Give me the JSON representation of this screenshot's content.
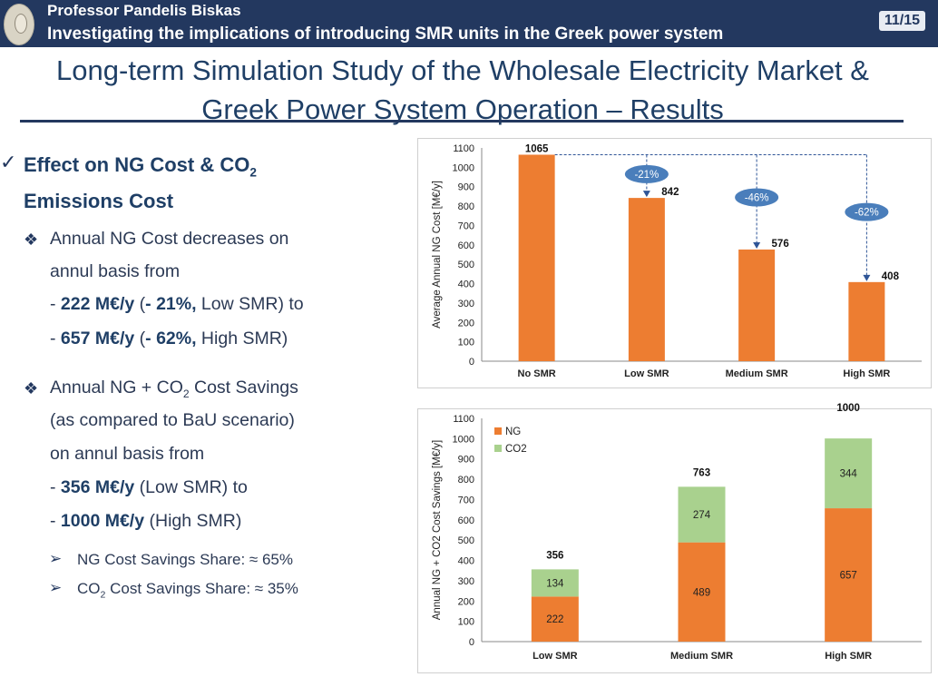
{
  "header": {
    "author": "Professor Pandelis Biskas",
    "subtitle": "Investigating the implications of introducing SMR units in the Greek power system",
    "page": "11/15"
  },
  "title": {
    "line1": "Long-term Simulation Study of the Wholesale Electricity Market &",
    "line2": "Greek Power System Operation – Results"
  },
  "left": {
    "section_heading_part1": "Effect on NG Cost & CO",
    "section_heading_sub": "2",
    "section_heading_line2": "Emissions Cost",
    "bullet1_line1": "Annual NG Cost decreases on",
    "bullet1_line2": "annul basis from",
    "bullet1_l3_pre": "- ",
    "bullet1_l3_bold1": "222 M€/y",
    "bullet1_l3_mid": " (",
    "bullet1_l3_bold2": "- 21%,",
    "bullet1_l3_end": " Low SMR) to",
    "bullet1_l4_pre": "- ",
    "bullet1_l4_bold1": "657 M€/y",
    "bullet1_l4_mid": " (",
    "bullet1_l4_bold2": "- 62%,",
    "bullet1_l4_end": " High SMR)",
    "bullet2_l1_pre": "Annual NG + CO",
    "bullet2_l1_sub": "2",
    "bullet2_l1_end": " Cost Savings",
    "bullet2_line2": "(as compared to BaU scenario)",
    "bullet2_line3": "on annul basis from",
    "bullet2_l4_pre": "- ",
    "bullet2_l4_bold": "356 M€/y",
    "bullet2_l4_end": " (Low SMR) to",
    "bullet2_l5_pre": "- ",
    "bullet2_l5_bold": "1000 M€/y",
    "bullet2_l5_end": " (High SMR)",
    "sub1": "NG Cost Savings Share: ≈ 65%",
    "sub2_pre": "CO",
    "sub2_sub": "2",
    "sub2_end": " Cost Savings Share: ≈ 35%",
    "bullet_icon": "diamond-bullet-icon",
    "sub_bullet_icon": "arrow-bullet-icon",
    "check_icon": "check-icon"
  },
  "colors": {
    "header_bg": "#23385f",
    "ng": "#ed7d31",
    "co2": "#a9d18e",
    "callout": "#4a7ebb"
  },
  "chart_data": [
    {
      "type": "bar",
      "title": "",
      "ylabel": "Average Annual NG Cost [M€/y]",
      "ylim": [
        0,
        1100
      ],
      "yticks": [
        0,
        100,
        200,
        300,
        400,
        500,
        600,
        700,
        800,
        900,
        1000,
        1100
      ],
      "categories": [
        "No SMR",
        "Low SMR",
        "Medium SMR",
        "High SMR"
      ],
      "values": [
        1065,
        842,
        576,
        408
      ],
      "data_labels": [
        "1065",
        "842",
        "576",
        "408"
      ],
      "annotations": [
        "",
        "-21%",
        "-46%",
        "-62%"
      ],
      "grid": false,
      "legend": "none"
    },
    {
      "type": "bar",
      "stacked": true,
      "title": "",
      "ylabel": "Annual NG + CO2 Cost Savings [M€/y]",
      "ylim": [
        0,
        1100
      ],
      "yticks": [
        0,
        100,
        200,
        300,
        400,
        500,
        600,
        700,
        800,
        900,
        1000,
        1100
      ],
      "categories": [
        "Low SMR",
        "Medium SMR",
        "High SMR"
      ],
      "series": [
        {
          "name": "NG",
          "values": [
            222,
            489,
            657
          ]
        },
        {
          "name": "CO2",
          "values": [
            134,
            274,
            344
          ]
        }
      ],
      "totals": [
        356,
        763,
        1000
      ],
      "grid": false,
      "legend": "top-left"
    }
  ]
}
